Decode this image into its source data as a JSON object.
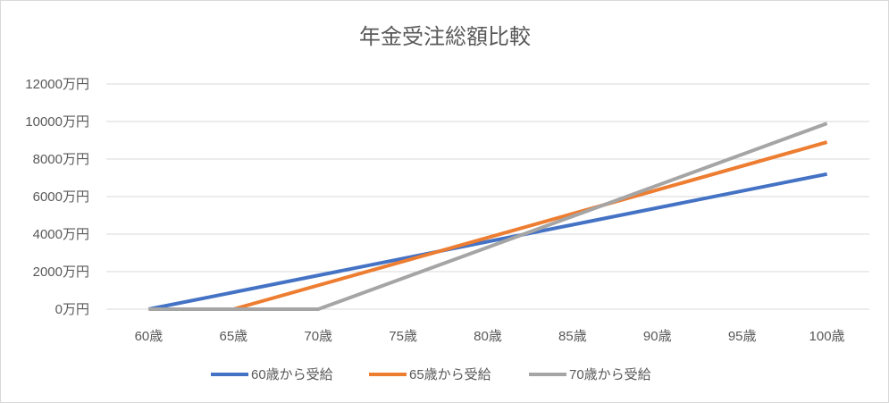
{
  "chart_data": {
    "type": "line",
    "title": "年金受注総額比較",
    "xlabel": "",
    "ylabel": "",
    "categories": [
      "60歳",
      "65歳",
      "70歳",
      "75歳",
      "80歳",
      "85歳",
      "90歳",
      "95歳",
      "100歳"
    ],
    "x": [
      60,
      65,
      70,
      75,
      80,
      85,
      90,
      95,
      100
    ],
    "y_ticks": [
      "0万円",
      "2000万円",
      "4000万円",
      "6000万円",
      "8000万円",
      "10000万円",
      "12000万円"
    ],
    "ylim": [
      0,
      12000
    ],
    "grid": true,
    "legend_position": "bottom",
    "series": [
      {
        "name": "60歳から受給",
        "color": "#4472C4",
        "x": [
          60,
          100
        ],
        "values": [
          0,
          7200
        ]
      },
      {
        "name": "65歳から受給",
        "color": "#ED7D31",
        "x": [
          60,
          65,
          100
        ],
        "values": [
          0,
          0,
          8900
        ]
      },
      {
        "name": "70歳から受給",
        "color": "#A5A5A5",
        "x": [
          60,
          70,
          100
        ],
        "values": [
          0,
          0,
          9900
        ]
      }
    ]
  }
}
